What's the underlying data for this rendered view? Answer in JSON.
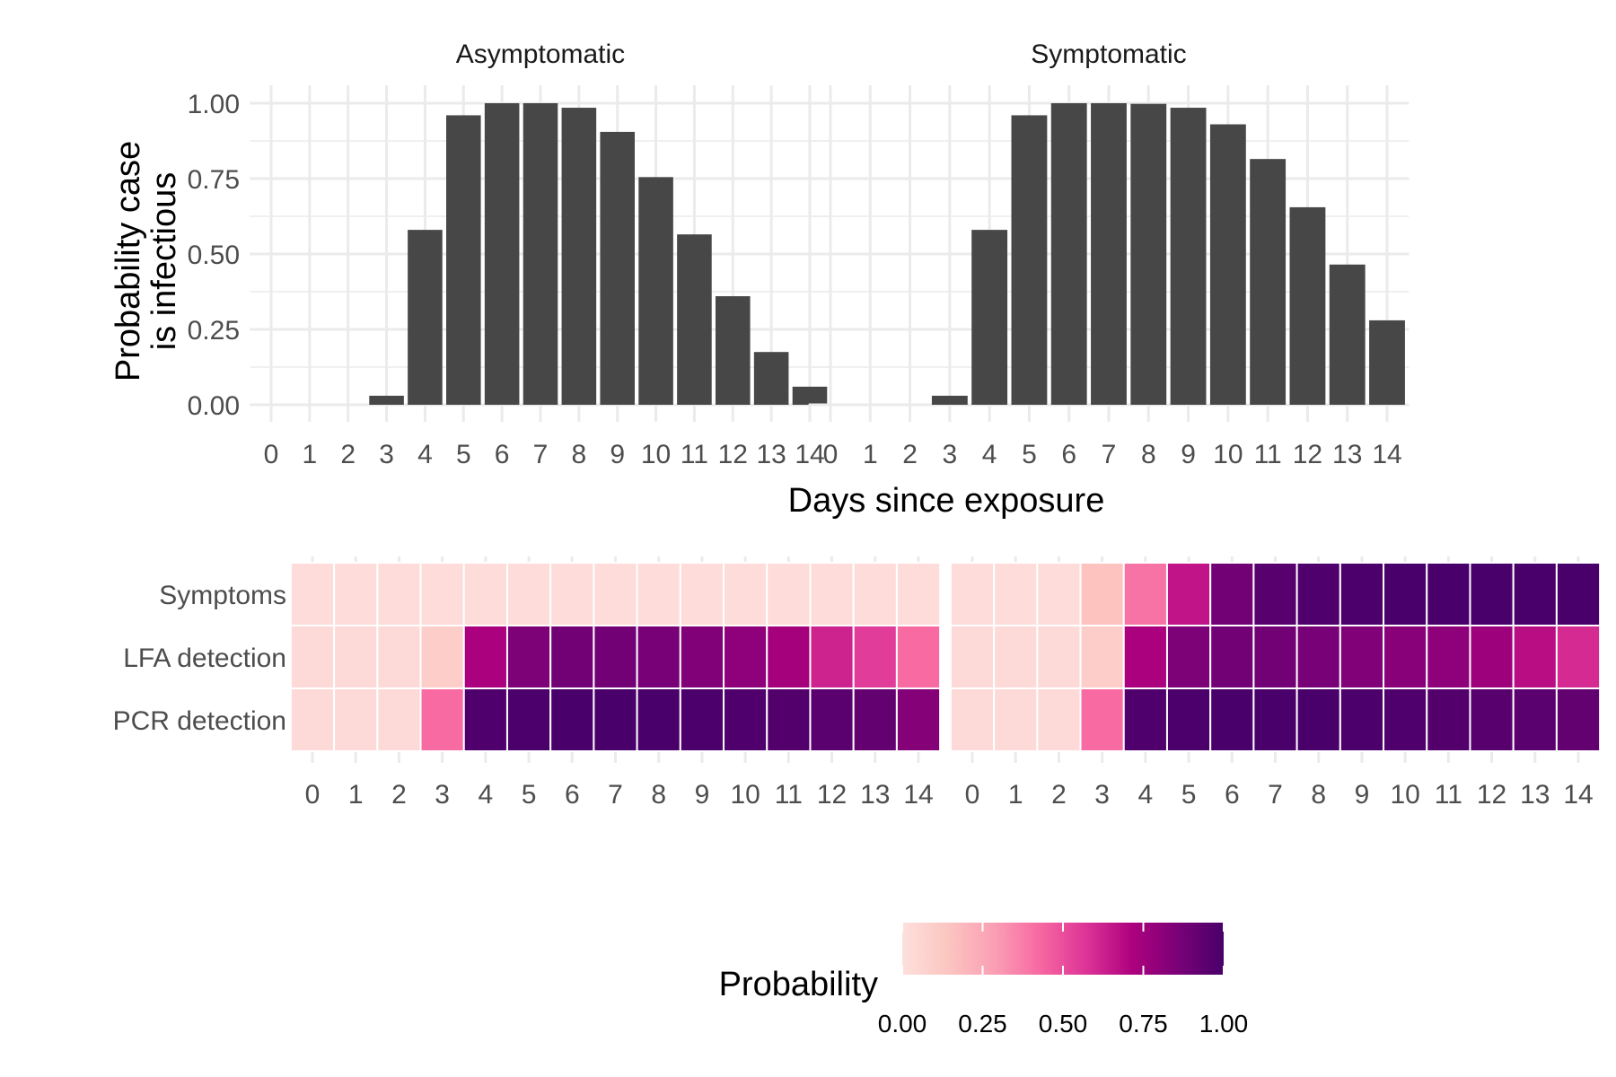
{
  "chart_data": [
    {
      "type": "bar",
      "title": "",
      "xlabel": "Days since exposure",
      "ylabel": "Probability case\nis infectious",
      "ylabel_lines": [
        "Probability case",
        "is infectious"
      ],
      "ylim": [
        0,
        1
      ],
      "yticks": [
        "0.00",
        "0.25",
        "0.50",
        "0.75",
        "1.00"
      ],
      "ytick_values": [
        0,
        0.25,
        0.5,
        0.75,
        1
      ],
      "grid": true,
      "bar_color": "#474747",
      "categories": [
        "0",
        "1",
        "2",
        "3",
        "4",
        "5",
        "6",
        "7",
        "8",
        "9",
        "10",
        "11",
        "12",
        "13",
        "14"
      ],
      "facets": [
        {
          "name": "Asymptomatic",
          "values": [
            0,
            0,
            0,
            0.03,
            0.58,
            0.96,
            1.0,
            1.0,
            0.985,
            0.905,
            0.755,
            0.565,
            0.36,
            0.175,
            0.06
          ]
        },
        {
          "name": "Symptomatic",
          "values": [
            0,
            0,
            0,
            0.03,
            0.58,
            0.96,
            1.0,
            1.0,
            0.998,
            0.985,
            0.93,
            0.815,
            0.655,
            0.465,
            0.28
          ]
        }
      ]
    },
    {
      "type": "heatmap",
      "title": "",
      "rows": [
        "Symptoms",
        "LFA detection",
        "PCR detection"
      ],
      "categories": [
        "0",
        "1",
        "2",
        "3",
        "4",
        "5",
        "6",
        "7",
        "8",
        "9",
        "10",
        "11",
        "12",
        "13",
        "14"
      ],
      "value_range": [
        0,
        1
      ],
      "facets": [
        {
          "name": "Asymptomatic",
          "values": [
            [
              0.02,
              0.02,
              0.02,
              0.02,
              0.02,
              0.02,
              0.02,
              0.02,
              0.02,
              0.02,
              0.02,
              0.02,
              0.02,
              0.02,
              0.02
            ],
            [
              0.03,
              0.03,
              0.03,
              0.1,
              0.72,
              0.85,
              0.88,
              0.88,
              0.86,
              0.84,
              0.8,
              0.74,
              0.62,
              0.55,
              0.42
            ],
            [
              0.03,
              0.03,
              0.03,
              0.42,
              0.98,
              0.99,
              1.0,
              1.0,
              1.0,
              0.99,
              0.98,
              0.97,
              0.95,
              0.92,
              0.83
            ]
          ]
        },
        {
          "name": "Symptomatic",
          "values": [
            [
              0.02,
              0.02,
              0.02,
              0.15,
              0.4,
              0.66,
              0.88,
              0.96,
              0.98,
              0.99,
              1.0,
              1.0,
              1.0,
              1.0,
              1.0
            ],
            [
              0.03,
              0.03,
              0.03,
              0.1,
              0.72,
              0.85,
              0.88,
              0.88,
              0.86,
              0.84,
              0.82,
              0.8,
              0.76,
              0.68,
              0.6
            ],
            [
              0.03,
              0.03,
              0.03,
              0.42,
              0.98,
              0.99,
              1.0,
              1.0,
              1.0,
              0.99,
              0.98,
              0.97,
              0.96,
              0.95,
              0.92
            ]
          ]
        }
      ]
    }
  ],
  "legend": {
    "title": "Probability",
    "ticks": [
      "0.00",
      "0.25",
      "0.50",
      "0.75",
      "1.00"
    ],
    "tick_values": [
      0,
      0.25,
      0.5,
      0.75,
      1
    ],
    "colors": [
      "#fde0dd",
      "#fcc5c0",
      "#fa9fb5",
      "#f768a1",
      "#dd3497",
      "#ae017e",
      "#7a0177",
      "#49006a"
    ],
    "placement": "bottom-center"
  },
  "colors": {
    "grid": "#ebebeb",
    "tick_text": "#4d4d4d",
    "background": "#ffffff"
  }
}
